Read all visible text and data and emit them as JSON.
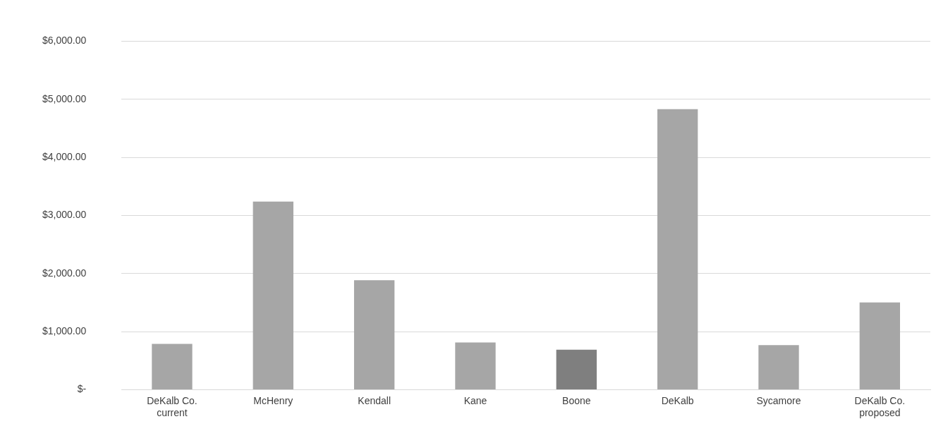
{
  "chart_data": {
    "type": "bar",
    "categories": [
      "DeKalb Co. current",
      "McHenry",
      "Kendall",
      "Kane",
      "Boone",
      "DeKalb",
      "Sycamore",
      "DeKalb Co. proposed"
    ],
    "values": [
      790,
      3240,
      1885,
      815,
      690,
      4830,
      770,
      1505
    ],
    "colors": [
      "#a6a6a6",
      "#a6a6a6",
      "#a6a6a6",
      "#a6a6a6",
      "#7f7f7f",
      "#a6a6a6",
      "#a6a6a6",
      "#a6a6a6"
    ],
    "ylim": [
      0,
      6000
    ],
    "yticks": [
      {
        "value": 0,
        "label": "$-"
      },
      {
        "value": 1000,
        "label": "$1,000.00"
      },
      {
        "value": 2000,
        "label": "$2,000.00"
      },
      {
        "value": 3000,
        "label": "$3,000.00"
      },
      {
        "value": 4000,
        "label": "$4,000.00"
      },
      {
        "value": 5000,
        "label": "$5,000.00"
      },
      {
        "value": 6000,
        "label": "$6,000.00"
      }
    ],
    "grid": "y",
    "legend": false
  }
}
